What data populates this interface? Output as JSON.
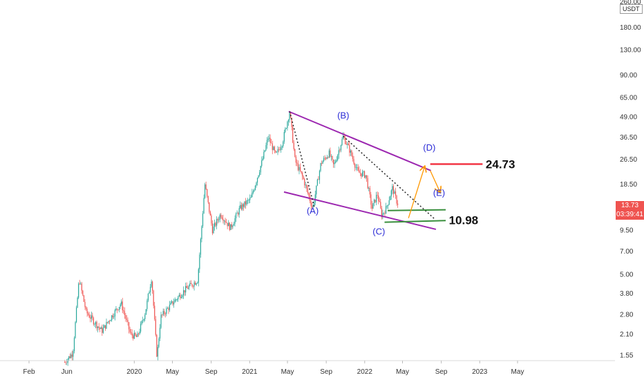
{
  "chart_data": {
    "type": "candlestick",
    "y_scale": "log",
    "ylim": [
      1.35,
      265
    ],
    "unit": "USDT",
    "y_ticks": [
      "1.55",
      "2.10",
      "2.80",
      "3.80",
      "5.00",
      "7.00",
      "9.50",
      "13.73",
      "18.50",
      "26.50",
      "36.50",
      "49.00",
      "65.00",
      "90.00",
      "130.00",
      "180.00",
      "260.00"
    ],
    "x_ticks": [
      "Feb",
      "Jun",
      "2020",
      "May",
      "Sep",
      "2021",
      "May",
      "Sep",
      "2022",
      "May",
      "Sep",
      "2023",
      "May"
    ],
    "last_price": "13.73",
    "countdown": "03:39:41",
    "wave_labels": [
      {
        "text": "(A)",
        "date": "2021-07-20",
        "value": 12.0
      },
      {
        "text": "(B)",
        "date": "2021-10-25",
        "value": 48.0
      },
      {
        "text": "(C)",
        "date": "2022-02-15",
        "value": 8.9
      },
      {
        "text": "(D)",
        "date": "2022-07-25",
        "value": 30.0
      },
      {
        "text": "(E)",
        "date": "2022-08-25",
        "value": 15.6
      }
    ],
    "levels": [
      {
        "text": "24.73",
        "value": 24.73,
        "color": "#f23645"
      },
      {
        "text": "10.98",
        "value": 10.98,
        "color": "#26a69a"
      }
    ],
    "trendlines": [
      {
        "name": "upper",
        "points": [
          [
            "2021-05-05",
            53
          ],
          [
            "2022-07-30",
            22.5
          ]
        ],
        "color": "#9c27b0"
      },
      {
        "name": "lower",
        "points": [
          [
            "2021-04-20",
            16.5
          ],
          [
            "2022-08-15",
            9.6
          ]
        ],
        "color": "#9c27b0"
      }
    ],
    "colors": {
      "up": "#26a69a",
      "down": "#ef5350",
      "wedge": "#9c27b0",
      "projection": "#ff9800",
      "level_support": "#388e3c"
    }
  }
}
